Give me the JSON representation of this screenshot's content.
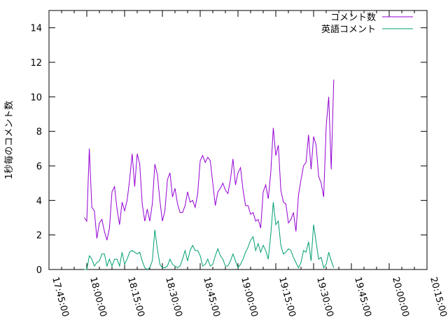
{
  "chart_data": {
    "type": "line",
    "xlabel": "",
    "ylabel": "1秒毎のコメント数",
    "x_range": [
      "17:45:00",
      "20:15:00"
    ],
    "x_ticks": [
      "17:45:00",
      "18:00:00",
      "18:15:00",
      "18:30:00",
      "18:45:00",
      "19:00:00",
      "19:15:00",
      "19:30:00",
      "19:45:00",
      "20:00:00",
      "20:15:00"
    ],
    "ylim": [
      0,
      15
    ],
    "y_ticks": [
      "0",
      "2",
      "4",
      "6",
      "8",
      "10",
      "12",
      "14"
    ],
    "legend_position": "top-right",
    "grid": false,
    "series": [
      {
        "name": "コメント数",
        "color": "#9400d3",
        "points": [
          [
            "17:59:00",
            3.0
          ],
          [
            "18:00:00",
            2.8
          ],
          [
            "18:01:00",
            7.0
          ],
          [
            "18:02:00",
            3.6
          ],
          [
            "18:03:00",
            3.4
          ],
          [
            "18:04:00",
            1.8
          ],
          [
            "18:05:00",
            2.7
          ],
          [
            "18:06:00",
            2.9
          ],
          [
            "18:07:00",
            2.2
          ],
          [
            "18:08:00",
            1.7
          ],
          [
            "18:09:00",
            2.4
          ],
          [
            "18:10:00",
            4.5
          ],
          [
            "18:11:00",
            4.8
          ],
          [
            "18:12:00",
            3.5
          ],
          [
            "18:13:00",
            2.6
          ],
          [
            "18:14:00",
            3.9
          ],
          [
            "18:15:00",
            3.4
          ],
          [
            "18:16:00",
            4.0
          ],
          [
            "18:17:00",
            5.2
          ],
          [
            "18:18:00",
            6.7
          ],
          [
            "18:19:00",
            4.8
          ],
          [
            "18:20:00",
            6.7
          ],
          [
            "18:21:00",
            6.1
          ],
          [
            "18:22:00",
            3.8
          ],
          [
            "18:23:00",
            2.8
          ],
          [
            "18:24:00",
            3.5
          ],
          [
            "18:25:00",
            2.8
          ],
          [
            "18:26:00",
            3.8
          ],
          [
            "18:27:00",
            6.1
          ],
          [
            "18:28:00",
            5.5
          ],
          [
            "18:29:00",
            4.0
          ],
          [
            "18:30:00",
            2.8
          ],
          [
            "18:31:00",
            3.4
          ],
          [
            "18:32:00",
            5.2
          ],
          [
            "18:33:00",
            5.6
          ],
          [
            "18:34:00",
            4.2
          ],
          [
            "18:35:00",
            4.7
          ],
          [
            "18:36:00",
            3.8
          ],
          [
            "18:37:00",
            3.3
          ],
          [
            "18:38:00",
            3.3
          ],
          [
            "18:39:00",
            3.7
          ],
          [
            "18:40:00",
            4.5
          ],
          [
            "18:41:00",
            3.9
          ],
          [
            "18:42:00",
            4.0
          ],
          [
            "18:43:00",
            3.6
          ],
          [
            "18:44:00",
            4.4
          ],
          [
            "18:45:00",
            6.3
          ],
          [
            "18:46:00",
            6.6
          ],
          [
            "18:47:00",
            6.2
          ],
          [
            "18:48:00",
            6.5
          ],
          [
            "18:49:00",
            6.3
          ],
          [
            "18:50:00",
            5.0
          ],
          [
            "18:51:00",
            3.7
          ],
          [
            "18:52:00",
            4.5
          ],
          [
            "18:53:00",
            4.7
          ],
          [
            "18:54:00",
            5.0
          ],
          [
            "18:55:00",
            4.6
          ],
          [
            "18:56:00",
            4.4
          ],
          [
            "18:57:00",
            5.2
          ],
          [
            "18:58:00",
            6.4
          ],
          [
            "18:59:00",
            4.9
          ],
          [
            "19:00:00",
            5.6
          ],
          [
            "19:01:00",
            5.9
          ],
          [
            "19:02:00",
            4.6
          ],
          [
            "19:03:00",
            3.7
          ],
          [
            "19:04:00",
            3.7
          ],
          [
            "19:05:00",
            3.2
          ],
          [
            "19:06:00",
            3.3
          ],
          [
            "19:07:00",
            2.8
          ],
          [
            "19:08:00",
            2.9
          ],
          [
            "19:09:00",
            2.4
          ],
          [
            "19:10:00",
            4.5
          ],
          [
            "19:11:00",
            4.9
          ],
          [
            "19:12:00",
            4.1
          ],
          [
            "19:13:00",
            5.6
          ],
          [
            "19:14:00",
            8.2
          ],
          [
            "19:15:00",
            6.6
          ],
          [
            "19:16:00",
            7.2
          ],
          [
            "19:17:00",
            4.6
          ],
          [
            "19:18:00",
            3.9
          ],
          [
            "19:19:00",
            3.8
          ],
          [
            "19:20:00",
            2.7
          ],
          [
            "19:21:00",
            2.9
          ],
          [
            "19:22:00",
            3.3
          ],
          [
            "19:23:00",
            2.2
          ],
          [
            "19:24:00",
            4.3
          ],
          [
            "19:25:00",
            5.2
          ],
          [
            "19:26:00",
            6.0
          ],
          [
            "19:27:00",
            6.2
          ],
          [
            "19:28:00",
            7.8
          ],
          [
            "19:29:00",
            5.8
          ],
          [
            "19:30:00",
            7.7
          ],
          [
            "19:31:00",
            7.2
          ],
          [
            "19:32:00",
            5.4
          ],
          [
            "19:33:00",
            5.0
          ],
          [
            "19:34:00",
            4.2
          ],
          [
            "19:35:00",
            8.3
          ],
          [
            "19:36:00",
            10.0
          ],
          [
            "19:37:00",
            5.8
          ],
          [
            "19:38:00",
            11.0
          ]
        ]
      },
      {
        "name": "英語コメント",
        "color": "#009e73",
        "points": [
          [
            "17:59:00",
            0.0
          ],
          [
            "18:00:00",
            0.0
          ],
          [
            "18:01:00",
            0.8
          ],
          [
            "18:02:00",
            0.6
          ],
          [
            "18:03:00",
            0.2
          ],
          [
            "18:04:00",
            0.4
          ],
          [
            "18:05:00",
            0.5
          ],
          [
            "18:06:00",
            0.9
          ],
          [
            "18:07:00",
            0.9
          ],
          [
            "18:08:00",
            0.2
          ],
          [
            "18:09:00",
            0.6
          ],
          [
            "18:10:00",
            0.2
          ],
          [
            "18:11:00",
            0.6
          ],
          [
            "18:12:00",
            0.6
          ],
          [
            "18:13:00",
            0.2
          ],
          [
            "18:14:00",
            1.0
          ],
          [
            "18:15:00",
            0.3
          ],
          [
            "18:16:00",
            0.6
          ],
          [
            "18:17:00",
            1.0
          ],
          [
            "18:18:00",
            1.1
          ],
          [
            "18:19:00",
            1.0
          ],
          [
            "18:20:00",
            0.9
          ],
          [
            "18:21:00",
            1.0
          ],
          [
            "18:22:00",
            0.5
          ],
          [
            "18:23:00",
            0.1
          ],
          [
            "18:24:00",
            0.0
          ],
          [
            "18:25:00",
            0.1
          ],
          [
            "18:26:00",
            0.5
          ],
          [
            "18:27:00",
            2.3
          ],
          [
            "18:28:00",
            1.2
          ],
          [
            "18:29:00",
            0.3
          ],
          [
            "18:30:00",
            0.1
          ],
          [
            "18:31:00",
            0.1
          ],
          [
            "18:32:00",
            0.2
          ],
          [
            "18:33:00",
            0.6
          ],
          [
            "18:34:00",
            0.3
          ],
          [
            "18:35:00",
            0.2
          ],
          [
            "18:36:00",
            0.1
          ],
          [
            "18:37:00",
            0.2
          ],
          [
            "18:38:00",
            0.6
          ],
          [
            "18:39:00",
            1.1
          ],
          [
            "18:40:00",
            0.5
          ],
          [
            "18:41:00",
            1.1
          ],
          [
            "18:42:00",
            1.4
          ],
          [
            "18:43:00",
            1.1
          ],
          [
            "18:44:00",
            1.1
          ],
          [
            "18:45:00",
            0.8
          ],
          [
            "18:46:00",
            0.2
          ],
          [
            "18:47:00",
            0.3
          ],
          [
            "18:48:00",
            0.6
          ],
          [
            "18:49:00",
            0.2
          ],
          [
            "18:50:00",
            0.3
          ],
          [
            "18:51:00",
            0.8
          ],
          [
            "18:52:00",
            1.2
          ],
          [
            "18:53:00",
            0.8
          ],
          [
            "18:54:00",
            0.6
          ],
          [
            "18:55:00",
            0.2
          ],
          [
            "18:56:00",
            0.2
          ],
          [
            "18:57:00",
            0.5
          ],
          [
            "18:58:00",
            0.9
          ],
          [
            "18:59:00",
            0.5
          ],
          [
            "19:00:00",
            0.1
          ],
          [
            "19:01:00",
            0.3
          ],
          [
            "19:02:00",
            0.6
          ],
          [
            "19:03:00",
            1.0
          ],
          [
            "19:04:00",
            1.3
          ],
          [
            "19:05:00",
            1.7
          ],
          [
            "19:06:00",
            1.9
          ],
          [
            "19:07:00",
            1.1
          ],
          [
            "19:08:00",
            1.5
          ],
          [
            "19:09:00",
            1.0
          ],
          [
            "19:10:00",
            1.4
          ],
          [
            "19:11:00",
            1.1
          ],
          [
            "19:12:00",
            0.6
          ],
          [
            "19:13:00",
            2.0
          ],
          [
            "19:14:00",
            3.9
          ],
          [
            "19:15:00",
            2.6
          ],
          [
            "19:16:00",
            2.8
          ],
          [
            "19:17:00",
            1.4
          ],
          [
            "19:18:00",
            0.9
          ],
          [
            "19:19:00",
            1.0
          ],
          [
            "19:20:00",
            1.2
          ],
          [
            "19:21:00",
            1.1
          ],
          [
            "19:22:00",
            0.7
          ],
          [
            "19:23:00",
            0.4
          ],
          [
            "19:24:00",
            0.1
          ],
          [
            "19:25:00",
            0.4
          ],
          [
            "19:26:00",
            1.1
          ],
          [
            "19:27:00",
            1.0
          ],
          [
            "19:28:00",
            1.6
          ],
          [
            "19:29:00",
            0.5
          ],
          [
            "19:30:00",
            2.6
          ],
          [
            "19:31:00",
            1.6
          ],
          [
            "19:32:00",
            0.6
          ],
          [
            "19:33:00",
            0.7
          ],
          [
            "19:34:00",
            0.1
          ],
          [
            "19:35:00",
            0.3
          ],
          [
            "19:36:00",
            1.0
          ],
          [
            "19:37:00",
            0.5
          ],
          [
            "19:38:00",
            0.1
          ]
        ]
      }
    ]
  }
}
